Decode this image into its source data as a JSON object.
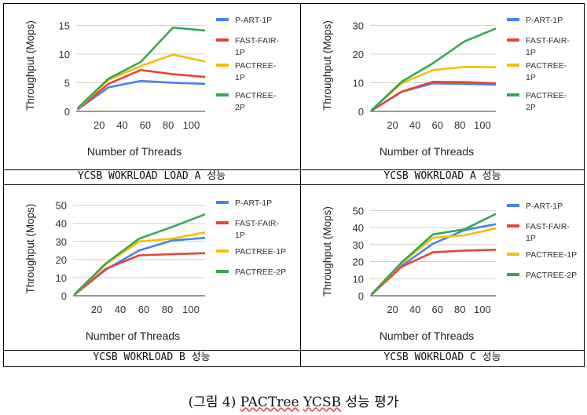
{
  "captions": [
    "YCSB WOKRLOAD LOAD A 성능",
    "YCSB WOKRLOAD A 성능",
    "YCSB WOKRLOAD B 성능",
    "YCSB WOKRLOAD C 성능"
  ],
  "figure_caption": {
    "prefix": "(그림 4) ",
    "name": "PACTree",
    "space": " ",
    "bench": "YCSB",
    "suffix": " 성능 평가"
  },
  "colors": {
    "P-ART-1P": "#4285f4",
    "FAST-FAIR-1P": "#ea4335",
    "PACTREE-1P": "#fbbc04",
    "PACTREE-2P": "#34a853"
  },
  "chart_data": [
    {
      "type": "line",
      "xlabel": "Number of Threads",
      "ylabel": "Throughput (Mops)",
      "x": [
        1,
        28,
        56,
        84,
        112
      ],
      "xticks": [
        20,
        40,
        60,
        80,
        100
      ],
      "yticks": [
        0,
        5,
        10,
        15
      ],
      "ylim": [
        0,
        16
      ],
      "xlim": [
        0,
        112
      ],
      "grid": "horizontal",
      "legend_position": "right",
      "series": [
        {
          "name": "P-ART-1P",
          "legend": [
            "P-ART-1P"
          ],
          "values": [
            0.3,
            4.2,
            5.3,
            5.0,
            4.8
          ]
        },
        {
          "name": "FAST-FAIR-1P",
          "legend": [
            "FAST-FAIR-",
            "1P"
          ],
          "values": [
            0.3,
            4.8,
            7.2,
            6.5,
            6.0
          ]
        },
        {
          "name": "PACTREE-1P",
          "legend": [
            "PACTREE-",
            "1P"
          ],
          "values": [
            0.4,
            5.5,
            7.9,
            9.9,
            8.7
          ]
        },
        {
          "name": "PACTREE-2P",
          "legend": [
            "PACTREE-",
            "2P"
          ],
          "values": [
            0.5,
            5.7,
            8.6,
            14.6,
            14.1
          ]
        }
      ]
    },
    {
      "type": "line",
      "xlabel": "Number of Threads",
      "ylabel": "Throughput (Mops)",
      "x": [
        1,
        28,
        56,
        84,
        112
      ],
      "xticks": [
        20,
        40,
        60,
        80,
        100
      ],
      "yticks": [
        0,
        10,
        20,
        30
      ],
      "ylim": [
        0,
        32
      ],
      "xlim": [
        0,
        112
      ],
      "grid": "horizontal",
      "legend_position": "right",
      "series": [
        {
          "name": "P-ART-1P",
          "legend": [
            "P-ART-1P"
          ],
          "values": [
            0.2,
            6.8,
            9.8,
            9.6,
            9.3
          ]
        },
        {
          "name": "FAST-FAIR-1P",
          "legend": [
            "FAST-FAIR-",
            "1P"
          ],
          "values": [
            0.2,
            6.9,
            10.3,
            10.2,
            9.8
          ]
        },
        {
          "name": "PACTREE-1P",
          "legend": [
            "PACTREE-",
            "1P"
          ],
          "values": [
            0.3,
            9.8,
            14.4,
            15.5,
            15.4
          ]
        },
        {
          "name": "PACTREE-2P",
          "legend": [
            "PACTREE-",
            "2P"
          ],
          "values": [
            0.3,
            10.3,
            16.8,
            24.4,
            28.9
          ]
        }
      ]
    },
    {
      "type": "line",
      "xlabel": "Number of Threads",
      "ylabel": "Throughput (Mops)",
      "x": [
        1,
        28,
        56,
        84,
        112
      ],
      "xticks": [
        20,
        40,
        60,
        80,
        100
      ],
      "yticks": [
        0,
        10,
        20,
        30,
        40,
        50
      ],
      "ylim": [
        0,
        52
      ],
      "xlim": [
        0,
        112
      ],
      "grid": "horizontal",
      "legend_position": "right",
      "series": [
        {
          "name": "P-ART-1P",
          "legend": [
            "P-ART-1P"
          ],
          "values": [
            0.5,
            14.5,
            25.0,
            30.5,
            32.0
          ]
        },
        {
          "name": "FAST-FAIR-1P",
          "legend": [
            "FAST-FAIR-",
            "1P"
          ],
          "values": [
            0.5,
            15.0,
            22.3,
            23.0,
            23.5
          ]
        },
        {
          "name": "PACTREE-1P",
          "legend": [
            "PACTREE-1P"
          ],
          "values": [
            0.7,
            17.5,
            30.0,
            31.5,
            35.0
          ]
        },
        {
          "name": "PACTREE-2P",
          "legend": [
            "PACTREE-2P"
          ],
          "values": [
            0.7,
            18.0,
            31.5,
            38.0,
            45.0
          ]
        }
      ]
    },
    {
      "type": "line",
      "xlabel": "Number of Threads",
      "ylabel": "Throughput (Mops)",
      "x": [
        1,
        28,
        56,
        84,
        112
      ],
      "xticks": [
        20,
        40,
        60,
        80,
        100
      ],
      "yticks": [
        0,
        10,
        20,
        30,
        40,
        50
      ],
      "ylim": [
        0,
        52
      ],
      "xlim": [
        0,
        112
      ],
      "grid": "horizontal",
      "legend_position": "right",
      "series": [
        {
          "name": "P-ART-1P",
          "legend": [
            "P-ART-1P"
          ],
          "values": [
            0.5,
            17.5,
            30.5,
            38.5,
            42.0
          ]
        },
        {
          "name": "FAST-FAIR-1P",
          "legend": [
            "FAST-FAIR-",
            "1P"
          ],
          "values": [
            0.5,
            17.0,
            25.5,
            26.5,
            27.0
          ]
        },
        {
          "name": "PACTREE-1P",
          "legend": [
            "PACTREE-1P"
          ],
          "values": [
            0.7,
            19.0,
            34.0,
            35.5,
            39.5
          ]
        },
        {
          "name": "PACTREE-2P",
          "legend": [
            "PACTREE-2P"
          ],
          "values": [
            0.7,
            19.5,
            36.0,
            39.0,
            48.0
          ]
        }
      ]
    }
  ]
}
